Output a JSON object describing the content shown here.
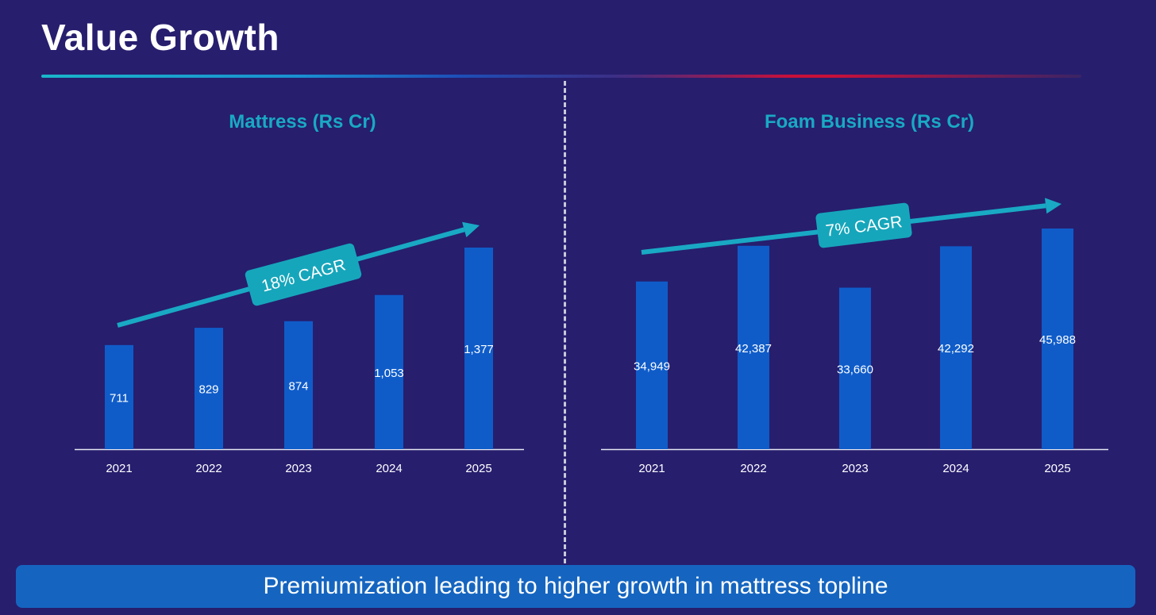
{
  "page": {
    "title": "Value Growth",
    "banner": "Premiumization leading to higher growth in mattress topline"
  },
  "colors": {
    "background": "#271e6e",
    "bar": "#0f5cc9",
    "accent_teal": "#19a9c4",
    "banner": "#1565c0"
  },
  "chart_data": [
    {
      "type": "bar",
      "title": "Mattress (Rs Cr)",
      "categories": [
        "2021",
        "2022",
        "2023",
        "2024",
        "2025"
      ],
      "values": [
        711,
        829,
        874,
        1053,
        1377
      ],
      "value_labels": [
        "711",
        "829",
        "874",
        "1,053",
        "1,377"
      ],
      "annotation": "18% CAGR",
      "ylim": [
        0,
        1400
      ],
      "grid": false
    },
    {
      "type": "bar",
      "title": "Foam Business (Rs Cr)",
      "categories": [
        "2021",
        "2022",
        "2023",
        "2024",
        "2025"
      ],
      "values": [
        34949,
        42387,
        33660,
        42292,
        45988
      ],
      "value_labels": [
        "34,949",
        "42,387",
        "33,660",
        "42,292",
        "45,988"
      ],
      "annotation": "7% CAGR",
      "ylim": [
        0,
        46000
      ],
      "grid": false
    }
  ]
}
